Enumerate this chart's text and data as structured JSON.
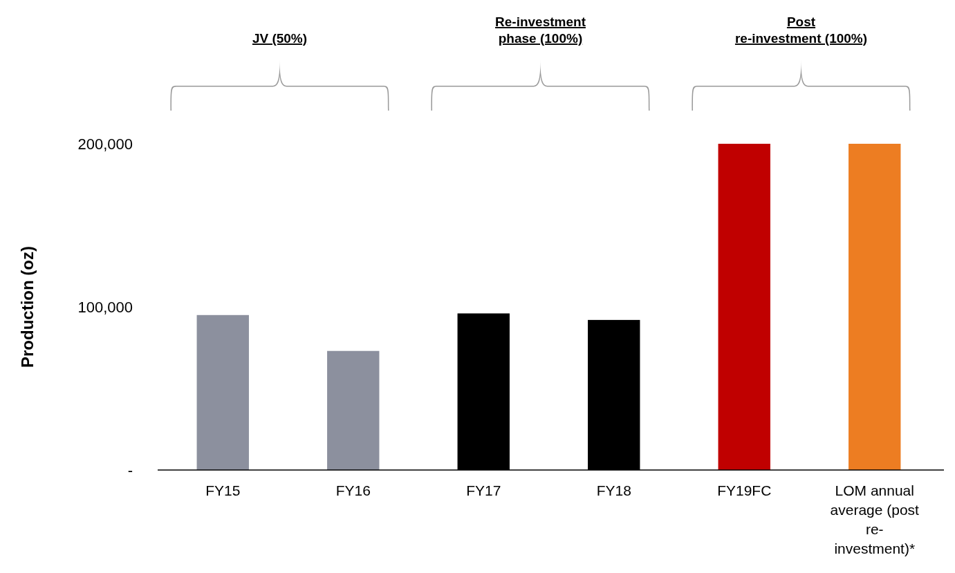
{
  "chart_data": {
    "type": "bar",
    "ylabel": "Production (oz)",
    "categories": [
      "FY15",
      "FY16",
      "FY17",
      "FY18",
      "FY19FC",
      "LOM annual\naverage (post\nre-\ninvestment)*"
    ],
    "values": [
      95000,
      73000,
      96000,
      92000,
      200000,
      200000
    ],
    "colors": [
      "#8c909e",
      "#8c909e",
      "#000000",
      "#000000",
      "#c00000",
      "#ed7d22"
    ],
    "ylim": [
      0,
      200000
    ],
    "yticks": [
      {
        "value": 0,
        "label": "-"
      },
      {
        "value": 100000,
        "label": "100,000"
      },
      {
        "value": 200000,
        "label": "200,000"
      }
    ],
    "annotations": [
      "JV (50%)",
      "Re-investment\nphase (100%)",
      "Post\nre-investment (100%)"
    ],
    "grid": false
  }
}
